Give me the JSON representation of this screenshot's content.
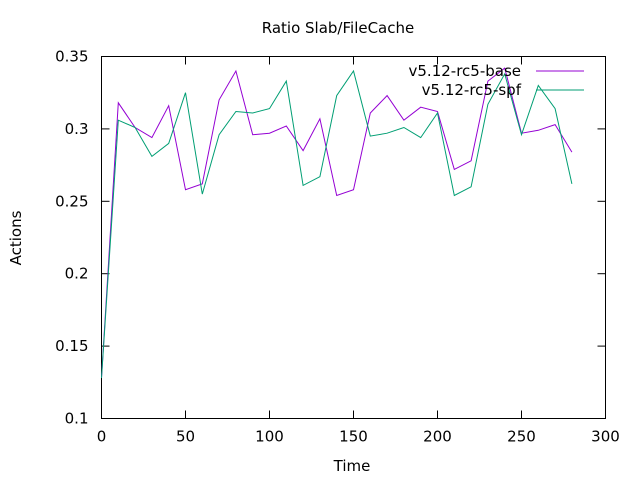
{
  "chart_data": {
    "type": "line",
    "title": "Ratio Slab/FileCache",
    "xlabel": "Time",
    "ylabel": "Actions",
    "xlim": [
      0,
      300
    ],
    "ylim": [
      0.1,
      0.35
    ],
    "xticks": [
      0,
      50,
      100,
      150,
      200,
      250,
      300
    ],
    "xtick_labels": [
      "0",
      "50",
      "100",
      "150",
      "200",
      "250",
      "300"
    ],
    "yticks": [
      0.1,
      0.15,
      0.2,
      0.25,
      0.3,
      0.35
    ],
    "ytick_labels": [
      "0.1",
      "0.15",
      "0.2",
      "0.25",
      "0.3",
      "0.35"
    ],
    "grid": false,
    "legend_position": "top-right",
    "x": [
      0,
      10,
      20,
      30,
      40,
      50,
      60,
      70,
      80,
      90,
      100,
      110,
      120,
      130,
      140,
      150,
      160,
      170,
      180,
      190,
      200,
      210,
      220,
      230,
      240,
      250,
      260,
      270,
      280
    ],
    "series": [
      {
        "name": "v5.12-rc5-base",
        "color": "#9400d3",
        "values": [
          0.128,
          0.318,
          0.301,
          0.294,
          0.316,
          0.258,
          0.262,
          0.32,
          0.34,
          0.296,
          0.297,
          0.302,
          0.285,
          0.307,
          0.254,
          0.258,
          0.311,
          0.323,
          0.306,
          0.315,
          0.312,
          0.272,
          0.278,
          0.333,
          0.342,
          0.297,
          0.299,
          0.303,
          0.284
        ]
      },
      {
        "name": "v5.12-rc5-spf",
        "color": "#009e73",
        "values": [
          0.128,
          0.306,
          0.301,
          0.281,
          0.29,
          0.325,
          0.255,
          0.296,
          0.312,
          0.311,
          0.314,
          0.333,
          0.261,
          0.267,
          0.323,
          0.34,
          0.295,
          0.297,
          0.301,
          0.294,
          0.311,
          0.254,
          0.26,
          0.317,
          0.338,
          0.296,
          0.33,
          0.314,
          0.262
        ]
      }
    ]
  }
}
